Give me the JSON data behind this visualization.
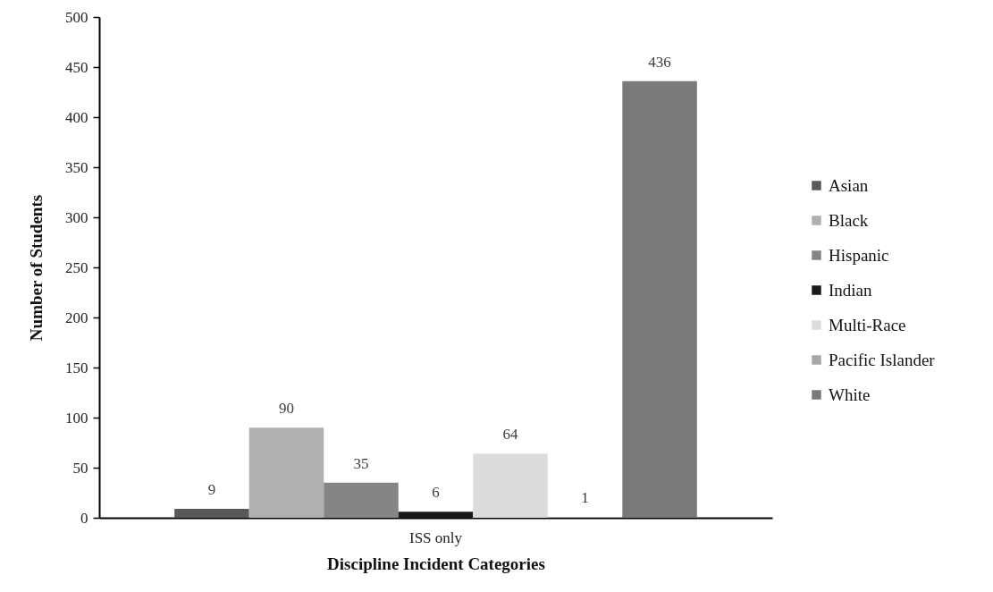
{
  "chart_data": {
    "type": "bar",
    "xlabel": "Discipline Incident Categories",
    "ylabel": "Number of Students",
    "categories": [
      "ISS only"
    ],
    "series": [
      {
        "name": "Asian",
        "color": "#595959",
        "values": [
          9
        ]
      },
      {
        "name": "Black",
        "color": "#b0b0b0",
        "values": [
          90
        ]
      },
      {
        "name": "Hispanic",
        "color": "#858585",
        "values": [
          35
        ]
      },
      {
        "name": "Indian",
        "color": "#1a1a1a",
        "values": [
          6
        ]
      },
      {
        "name": "Multi-Race",
        "color": "#dcdcdc",
        "values": [
          64
        ]
      },
      {
        "name": "Pacific Islander",
        "color": "#a6a6a6",
        "values": [
          1
        ]
      },
      {
        "name": "White",
        "color": "#7a7a7a",
        "values": [
          436
        ]
      }
    ],
    "ylim": [
      0,
      500
    ],
    "yticks": [
      0,
      50,
      100,
      150,
      200,
      250,
      300,
      350,
      400,
      450,
      500
    ],
    "data_labels": true,
    "grid": false,
    "legend": "right"
  }
}
